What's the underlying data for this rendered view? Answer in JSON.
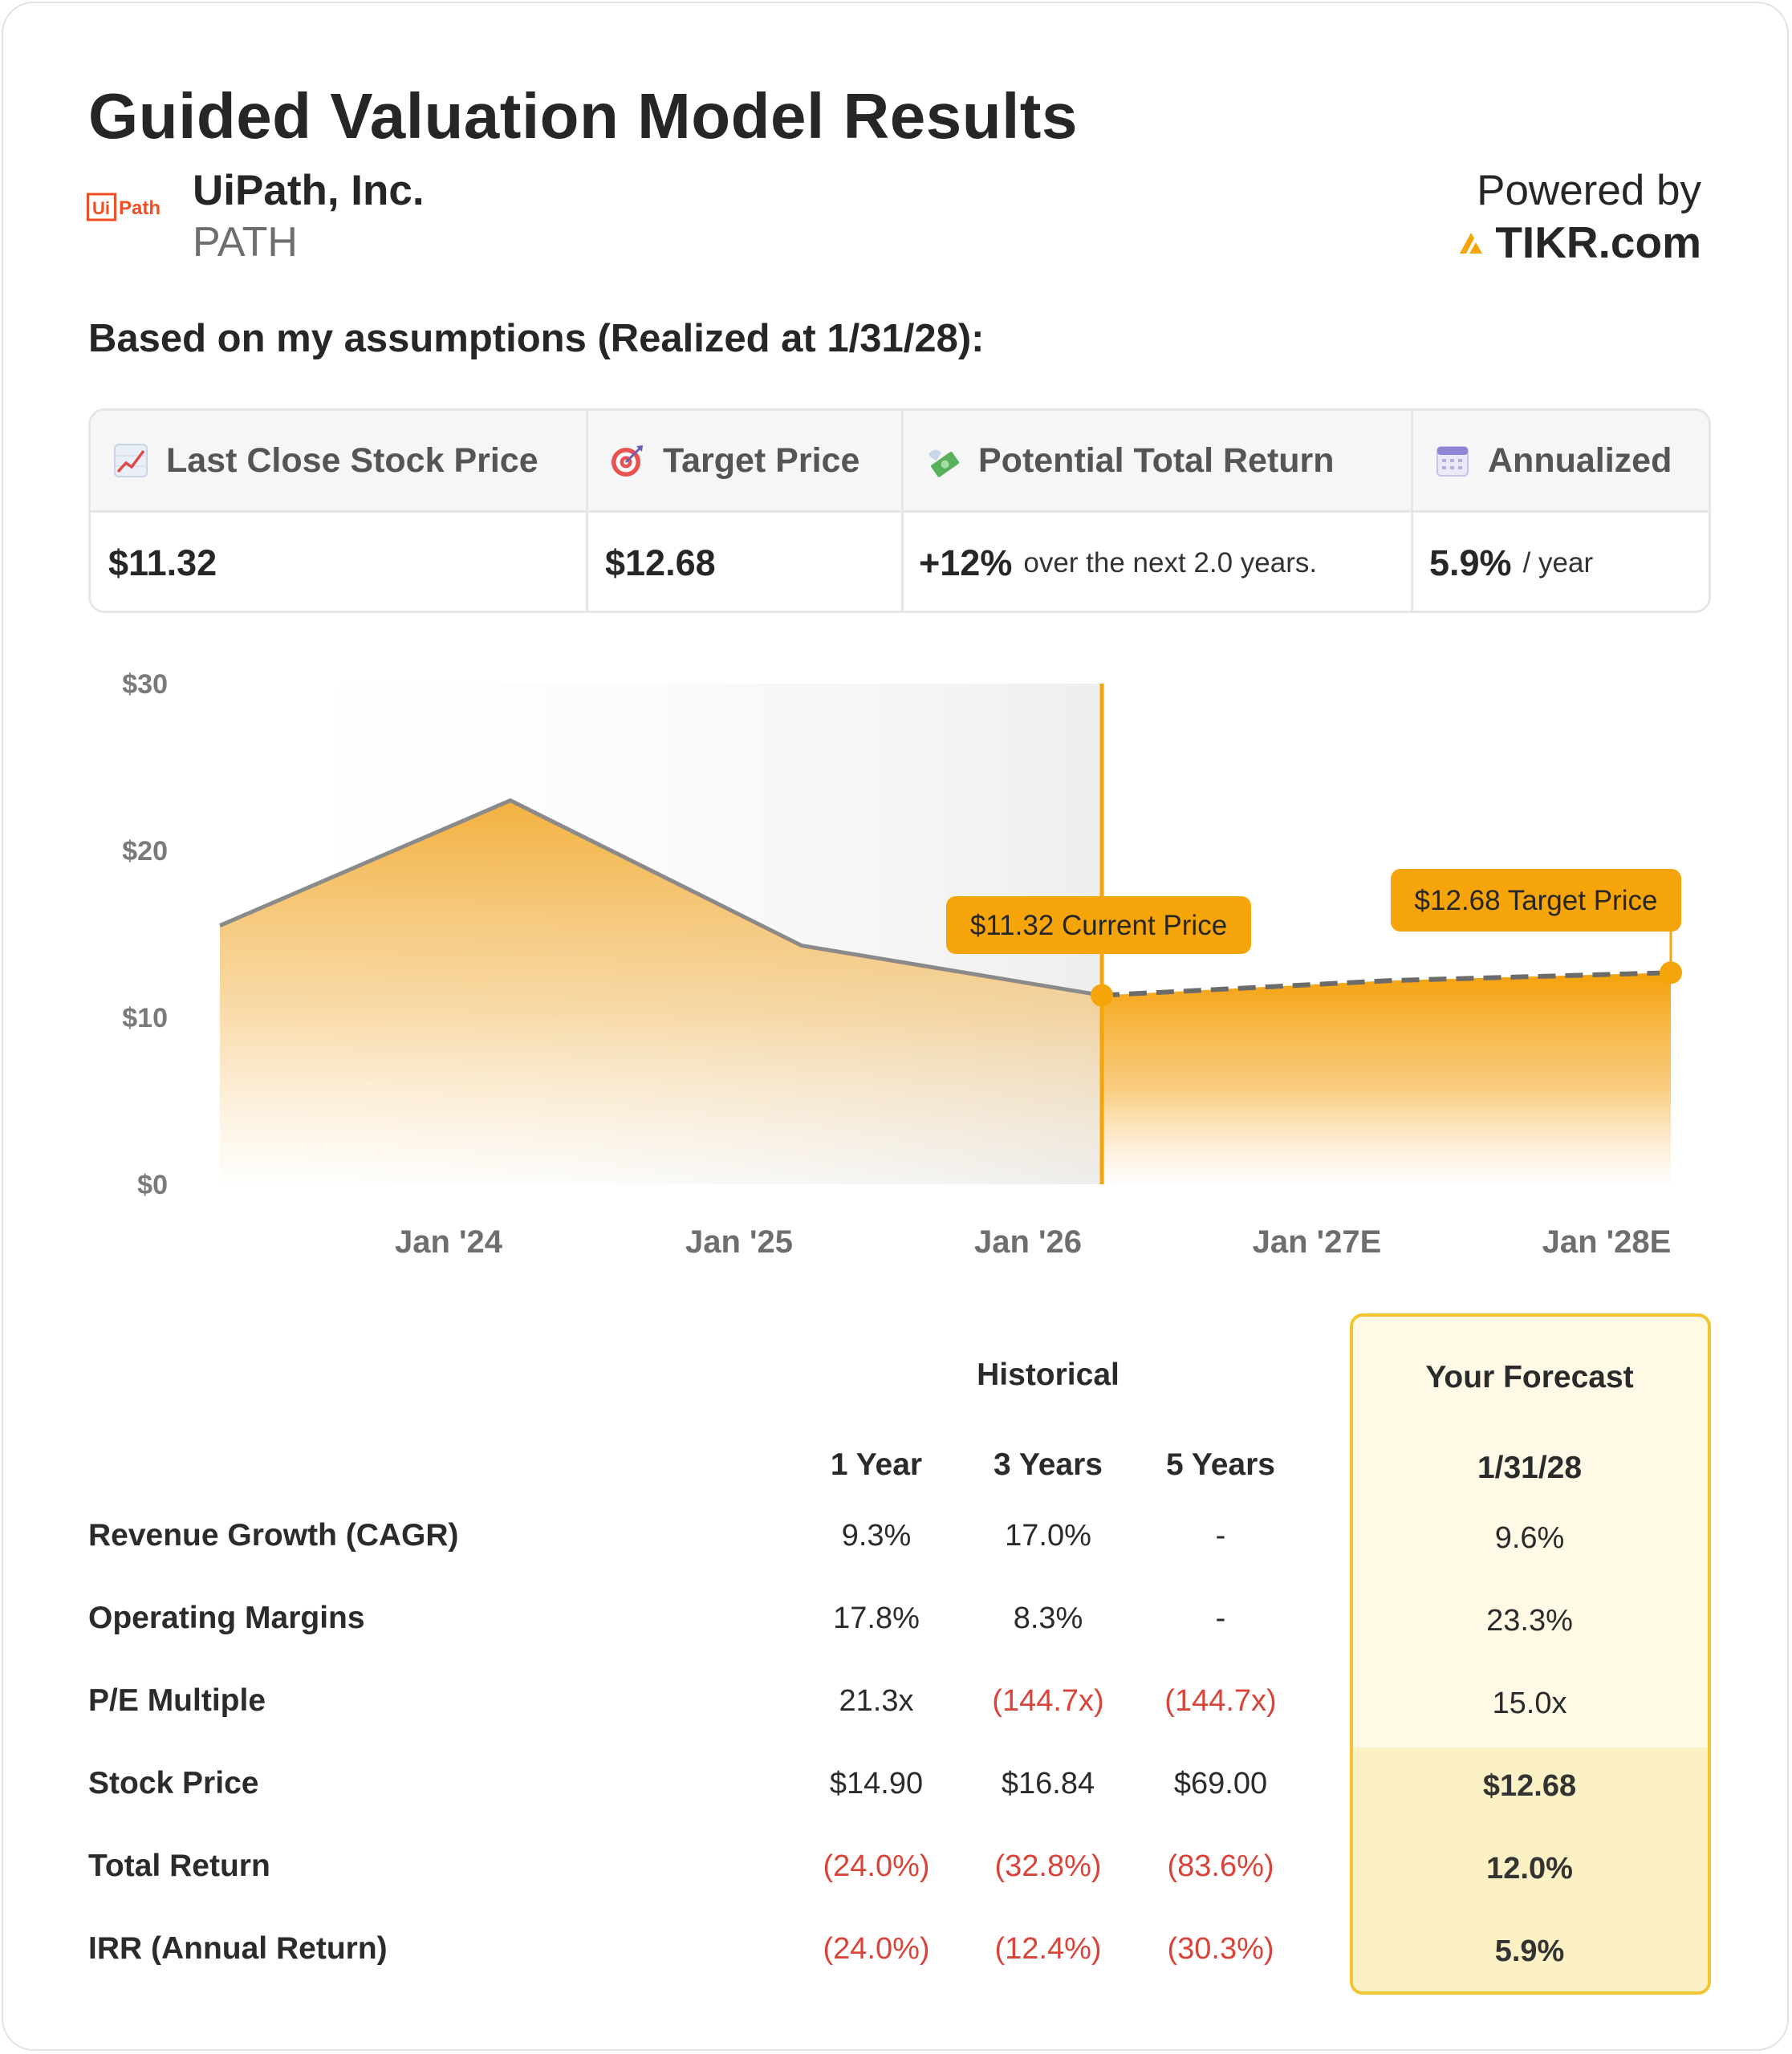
{
  "header": {
    "title": "Guided Valuation Model Results",
    "company_name": "UiPath, Inc.",
    "ticker": "PATH",
    "logo_text_left": "Ui",
    "logo_text_right": "Path",
    "powered_by": "Powered by",
    "brand": "TIKR.com"
  },
  "assumptions_line": "Based on my assumptions (Realized at 1/31/28):",
  "summary": {
    "last_close_label": "Last Close Stock Price",
    "last_close_value": "$11.32",
    "target_label": "Target Price",
    "target_value": "$12.68",
    "total_return_label": "Potential Total Return",
    "total_return_value": "+12%",
    "total_return_suffix": "over the next 2.0 years.",
    "annualized_label": "Annualized",
    "annualized_value": "5.9%",
    "annualized_suffix": "/ year"
  },
  "chart_data": {
    "type": "area",
    "y_ticks": [
      "$30",
      "$20",
      "$10",
      "$0"
    ],
    "ylim": [
      0,
      30
    ],
    "x_ticks": [
      "Jan '24",
      "Jan '25",
      "Jan '26",
      "Jan '27E",
      "Jan '28E"
    ],
    "historical": {
      "x": [
        "Jan '23",
        "Mar '24",
        "Jan '25",
        "Jan '26"
      ],
      "y": [
        15.5,
        23.0,
        14.3,
        11.32
      ]
    },
    "forecast": {
      "x": [
        "Jan '26",
        "Jan '27E",
        "Jan '28E"
      ],
      "y": [
        11.32,
        12.2,
        12.68
      ]
    },
    "annotations": {
      "current": "$11.32 Current Price",
      "target": "$12.68 Target Price"
    },
    "colors": {
      "area": "#f5a50a",
      "line": "#8a8a8a",
      "marker": "#f5a50a",
      "label_bg": "#f5a50a"
    }
  },
  "table": {
    "historical_header": "Historical",
    "forecast_header": "Your Forecast",
    "columns": [
      "1 Year",
      "3 Years",
      "5 Years"
    ],
    "forecast_column": "1/31/28",
    "rows": [
      {
        "label": "Revenue Growth (CAGR)",
        "values": [
          "9.3%",
          "17.0%",
          "-"
        ],
        "forecast": "9.6%"
      },
      {
        "label": "Operating Margins",
        "values": [
          "17.8%",
          "8.3%",
          "-"
        ],
        "forecast": "23.3%"
      },
      {
        "label": "P/E Multiple",
        "values": [
          "21.3x",
          "(144.7x)",
          "(144.7x)"
        ],
        "forecast": "15.0x"
      },
      {
        "label": "Stock Price",
        "values": [
          "$14.90",
          "$16.84",
          "$69.00"
        ],
        "forecast": "$12.68"
      },
      {
        "label": "Total Return",
        "values": [
          "(24.0%)",
          "(32.8%)",
          "(83.6%)"
        ],
        "forecast": "12.0%"
      },
      {
        "label": "IRR (Annual Return)",
        "values": [
          "(24.0%)",
          "(12.4%)",
          "(30.3%)"
        ],
        "forecast": "5.9%"
      }
    ]
  }
}
